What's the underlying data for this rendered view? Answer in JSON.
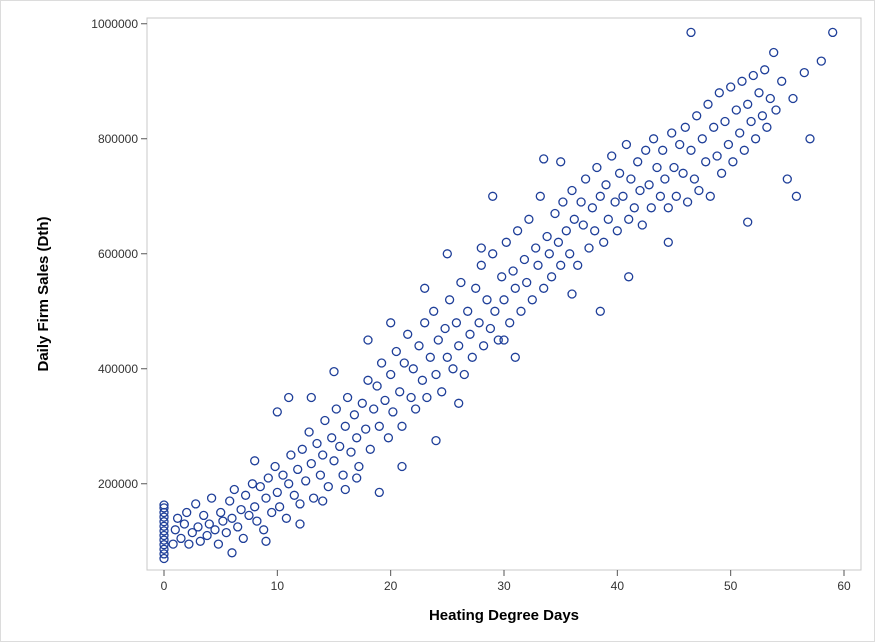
{
  "chart_data": {
    "type": "scatter",
    "title": "",
    "xlabel": "Heating Degree Days",
    "ylabel": "Daily Firm Sales (Dth)",
    "xlim": [
      -1.5,
      61.5
    ],
    "ylim": [
      50000,
      1010000
    ],
    "x_ticks": [
      0,
      10,
      20,
      30,
      40,
      50,
      60
    ],
    "x_tick_labels": [
      "0",
      "10",
      "20",
      "30",
      "40",
      "50",
      "60"
    ],
    "y_ticks": [
      200000,
      400000,
      600000,
      800000,
      1000000
    ],
    "y_tick_labels": [
      "200000",
      "400000",
      "600000",
      "800000",
      "1000000"
    ],
    "grid": false,
    "marker": "open-circle",
    "marker_color": "#1f3f99",
    "series": [
      {
        "points": [
          [
            0,
            70000
          ],
          [
            0,
            78000
          ],
          [
            0,
            86000
          ],
          [
            0,
            94000
          ],
          [
            0,
            102000
          ],
          [
            0,
            110000
          ],
          [
            0,
            118000
          ],
          [
            0,
            126000
          ],
          [
            0,
            134000
          ],
          [
            0,
            142000
          ],
          [
            0,
            150000
          ],
          [
            0,
            158000
          ],
          [
            0,
            163000
          ],
          [
            0.8,
            95000
          ],
          [
            1,
            120000
          ],
          [
            1.2,
            140000
          ],
          [
            1.5,
            105000
          ],
          [
            1.8,
            130000
          ],
          [
            2,
            150000
          ],
          [
            2.2,
            95000
          ],
          [
            2.5,
            115000
          ],
          [
            2.8,
            165000
          ],
          [
            3,
            125000
          ],
          [
            3.2,
            100000
          ],
          [
            3.5,
            145000
          ],
          [
            3.8,
            110000
          ],
          [
            4,
            130000
          ],
          [
            4.2,
            175000
          ],
          [
            4.5,
            120000
          ],
          [
            4.8,
            95000
          ],
          [
            5,
            150000
          ],
          [
            5.2,
            135000
          ],
          [
            5.5,
            115000
          ],
          [
            5.8,
            170000
          ],
          [
            6,
            140000
          ],
          [
            6.2,
            190000
          ],
          [
            6.5,
            125000
          ],
          [
            6.8,
            155000
          ],
          [
            7,
            105000
          ],
          [
            7.2,
            180000
          ],
          [
            7.5,
            145000
          ],
          [
            7.8,
            200000
          ],
          [
            8,
            160000
          ],
          [
            8.2,
            135000
          ],
          [
            8.5,
            195000
          ],
          [
            8.8,
            120000
          ],
          [
            9,
            175000
          ],
          [
            9.2,
            210000
          ],
          [
            9.5,
            150000
          ],
          [
            9.8,
            230000
          ],
          [
            10,
            185000
          ],
          [
            10.2,
            160000
          ],
          [
            10.5,
            215000
          ],
          [
            10.8,
            140000
          ],
          [
            11,
            200000
          ],
          [
            11.2,
            250000
          ],
          [
            11.5,
            180000
          ],
          [
            11.8,
            225000
          ],
          [
            12,
            165000
          ],
          [
            12.2,
            260000
          ],
          [
            12.5,
            205000
          ],
          [
            12.8,
            290000
          ],
          [
            13,
            235000
          ],
          [
            13.2,
            175000
          ],
          [
            13.5,
            270000
          ],
          [
            13.8,
            215000
          ],
          [
            14,
            250000
          ],
          [
            14.2,
            310000
          ],
          [
            14.5,
            195000
          ],
          [
            14.8,
            280000
          ],
          [
            15,
            240000
          ],
          [
            15.2,
            330000
          ],
          [
            15.5,
            265000
          ],
          [
            15.8,
            215000
          ],
          [
            16,
            300000
          ],
          [
            16.2,
            350000
          ],
          [
            16.5,
            255000
          ],
          [
            16.8,
            320000
          ],
          [
            17,
            280000
          ],
          [
            17.2,
            230000
          ],
          [
            17.5,
            340000
          ],
          [
            17.8,
            295000
          ],
          [
            18,
            380000
          ],
          [
            18.2,
            260000
          ],
          [
            18.5,
            330000
          ],
          [
            18.8,
            370000
          ],
          [
            19,
            300000
          ],
          [
            19.2,
            410000
          ],
          [
            19.5,
            345000
          ],
          [
            19.8,
            280000
          ],
          [
            20,
            390000
          ],
          [
            20.2,
            325000
          ],
          [
            20.5,
            430000
          ],
          [
            20.8,
            360000
          ],
          [
            21,
            300000
          ],
          [
            21.2,
            410000
          ],
          [
            21.5,
            460000
          ],
          [
            21.8,
            350000
          ],
          [
            22,
            400000
          ],
          [
            22.2,
            330000
          ],
          [
            22.5,
            440000
          ],
          [
            22.8,
            380000
          ],
          [
            23,
            480000
          ],
          [
            23.2,
            350000
          ],
          [
            23.5,
            420000
          ],
          [
            23.8,
            500000
          ],
          [
            24,
            390000
          ],
          [
            24.2,
            450000
          ],
          [
            24.5,
            360000
          ],
          [
            24.8,
            470000
          ],
          [
            25,
            420000
          ],
          [
            25.2,
            520000
          ],
          [
            25.5,
            400000
          ],
          [
            25.8,
            480000
          ],
          [
            26,
            440000
          ],
          [
            26.2,
            550000
          ],
          [
            26.5,
            390000
          ],
          [
            26.8,
            500000
          ],
          [
            27,
            460000
          ],
          [
            27.2,
            420000
          ],
          [
            27.5,
            540000
          ],
          [
            27.8,
            480000
          ],
          [
            28,
            580000
          ],
          [
            28.2,
            440000
          ],
          [
            28.5,
            520000
          ],
          [
            28.8,
            470000
          ],
          [
            29,
            600000
          ],
          [
            29.2,
            500000
          ],
          [
            29.5,
            450000
          ],
          [
            29.8,
            560000
          ],
          [
            30,
            520000
          ],
          [
            30.2,
            620000
          ],
          [
            30.5,
            480000
          ],
          [
            30.8,
            570000
          ],
          [
            31,
            540000
          ],
          [
            31.2,
            640000
          ],
          [
            31.5,
            500000
          ],
          [
            31.8,
            590000
          ],
          [
            32,
            550000
          ],
          [
            32.2,
            660000
          ],
          [
            32.5,
            520000
          ],
          [
            32.8,
            610000
          ],
          [
            33,
            580000
          ],
          [
            33.2,
            700000
          ],
          [
            33.5,
            540000
          ],
          [
            33.8,
            630000
          ],
          [
            34,
            600000
          ],
          [
            34.2,
            560000
          ],
          [
            34.5,
            670000
          ],
          [
            34.8,
            620000
          ],
          [
            35,
            580000
          ],
          [
            35.2,
            690000
          ],
          [
            35.5,
            640000
          ],
          [
            35.8,
            600000
          ],
          [
            36,
            710000
          ],
          [
            36.2,
            660000
          ],
          [
            36.5,
            580000
          ],
          [
            36.8,
            690000
          ],
          [
            37,
            650000
          ],
          [
            37.2,
            730000
          ],
          [
            37.5,
            610000
          ],
          [
            37.8,
            680000
          ],
          [
            38,
            640000
          ],
          [
            38.2,
            750000
          ],
          [
            38.5,
            700000
          ],
          [
            38.8,
            620000
          ],
          [
            39,
            720000
          ],
          [
            39.2,
            660000
          ],
          [
            39.5,
            770000
          ],
          [
            39.8,
            690000
          ],
          [
            40,
            640000
          ],
          [
            40.2,
            740000
          ],
          [
            40.5,
            700000
          ],
          [
            40.8,
            790000
          ],
          [
            41,
            660000
          ],
          [
            41.2,
            730000
          ],
          [
            41.5,
            680000
          ],
          [
            41.8,
            760000
          ],
          [
            42,
            710000
          ],
          [
            42.2,
            650000
          ],
          [
            42.5,
            780000
          ],
          [
            42.8,
            720000
          ],
          [
            43,
            680000
          ],
          [
            43.2,
            800000
          ],
          [
            43.5,
            750000
          ],
          [
            43.8,
            700000
          ],
          [
            44,
            780000
          ],
          [
            44.2,
            730000
          ],
          [
            44.5,
            680000
          ],
          [
            44.8,
            810000
          ],
          [
            45,
            750000
          ],
          [
            45.2,
            700000
          ],
          [
            45.5,
            790000
          ],
          [
            45.8,
            740000
          ],
          [
            46,
            820000
          ],
          [
            46.2,
            690000
          ],
          [
            46.5,
            780000
          ],
          [
            46.8,
            730000
          ],
          [
            47,
            840000
          ],
          [
            47.2,
            710000
          ],
          [
            47.5,
            800000
          ],
          [
            47.8,
            760000
          ],
          [
            48,
            860000
          ],
          [
            48.2,
            700000
          ],
          [
            48.5,
            820000
          ],
          [
            48.8,
            770000
          ],
          [
            49,
            880000
          ],
          [
            49.2,
            740000
          ],
          [
            49.5,
            830000
          ],
          [
            49.8,
            790000
          ],
          [
            50,
            890000
          ],
          [
            50.2,
            760000
          ],
          [
            50.5,
            850000
          ],
          [
            50.8,
            810000
          ],
          [
            51,
            900000
          ],
          [
            51.2,
            780000
          ],
          [
            51.5,
            860000
          ],
          [
            51.8,
            830000
          ],
          [
            52,
            910000
          ],
          [
            52.2,
            800000
          ],
          [
            52.5,
            880000
          ],
          [
            52.8,
            840000
          ],
          [
            53,
            920000
          ],
          [
            53.2,
            820000
          ],
          [
            53.5,
            870000
          ],
          [
            53.8,
            950000
          ],
          [
            54,
            850000
          ],
          [
            54.5,
            900000
          ],
          [
            55,
            730000
          ],
          [
            55.5,
            870000
          ],
          [
            55.8,
            700000
          ],
          [
            56.5,
            915000
          ],
          [
            57,
            800000
          ],
          [
            58,
            935000
          ],
          [
            59,
            985000
          ],
          [
            46.5,
            985000
          ],
          [
            33.5,
            765000
          ],
          [
            44.5,
            620000
          ],
          [
            51.5,
            655000
          ],
          [
            38.5,
            500000
          ],
          [
            30,
            450000
          ],
          [
            24,
            275000
          ],
          [
            19,
            185000
          ],
          [
            14,
            170000
          ],
          [
            9,
            100000
          ],
          [
            6,
            80000
          ],
          [
            12,
            130000
          ],
          [
            16,
            190000
          ],
          [
            21,
            230000
          ],
          [
            26,
            340000
          ],
          [
            31,
            420000
          ],
          [
            36,
            530000
          ],
          [
            41,
            560000
          ],
          [
            28,
            610000
          ],
          [
            23,
            540000
          ],
          [
            18,
            450000
          ],
          [
            13,
            350000
          ],
          [
            8,
            240000
          ],
          [
            11,
            350000
          ],
          [
            15,
            395000
          ],
          [
            20,
            480000
          ],
          [
            25,
            600000
          ],
          [
            35,
            760000
          ],
          [
            29,
            700000
          ],
          [
            10,
            325000
          ],
          [
            17,
            210000
          ]
        ]
      }
    ]
  }
}
